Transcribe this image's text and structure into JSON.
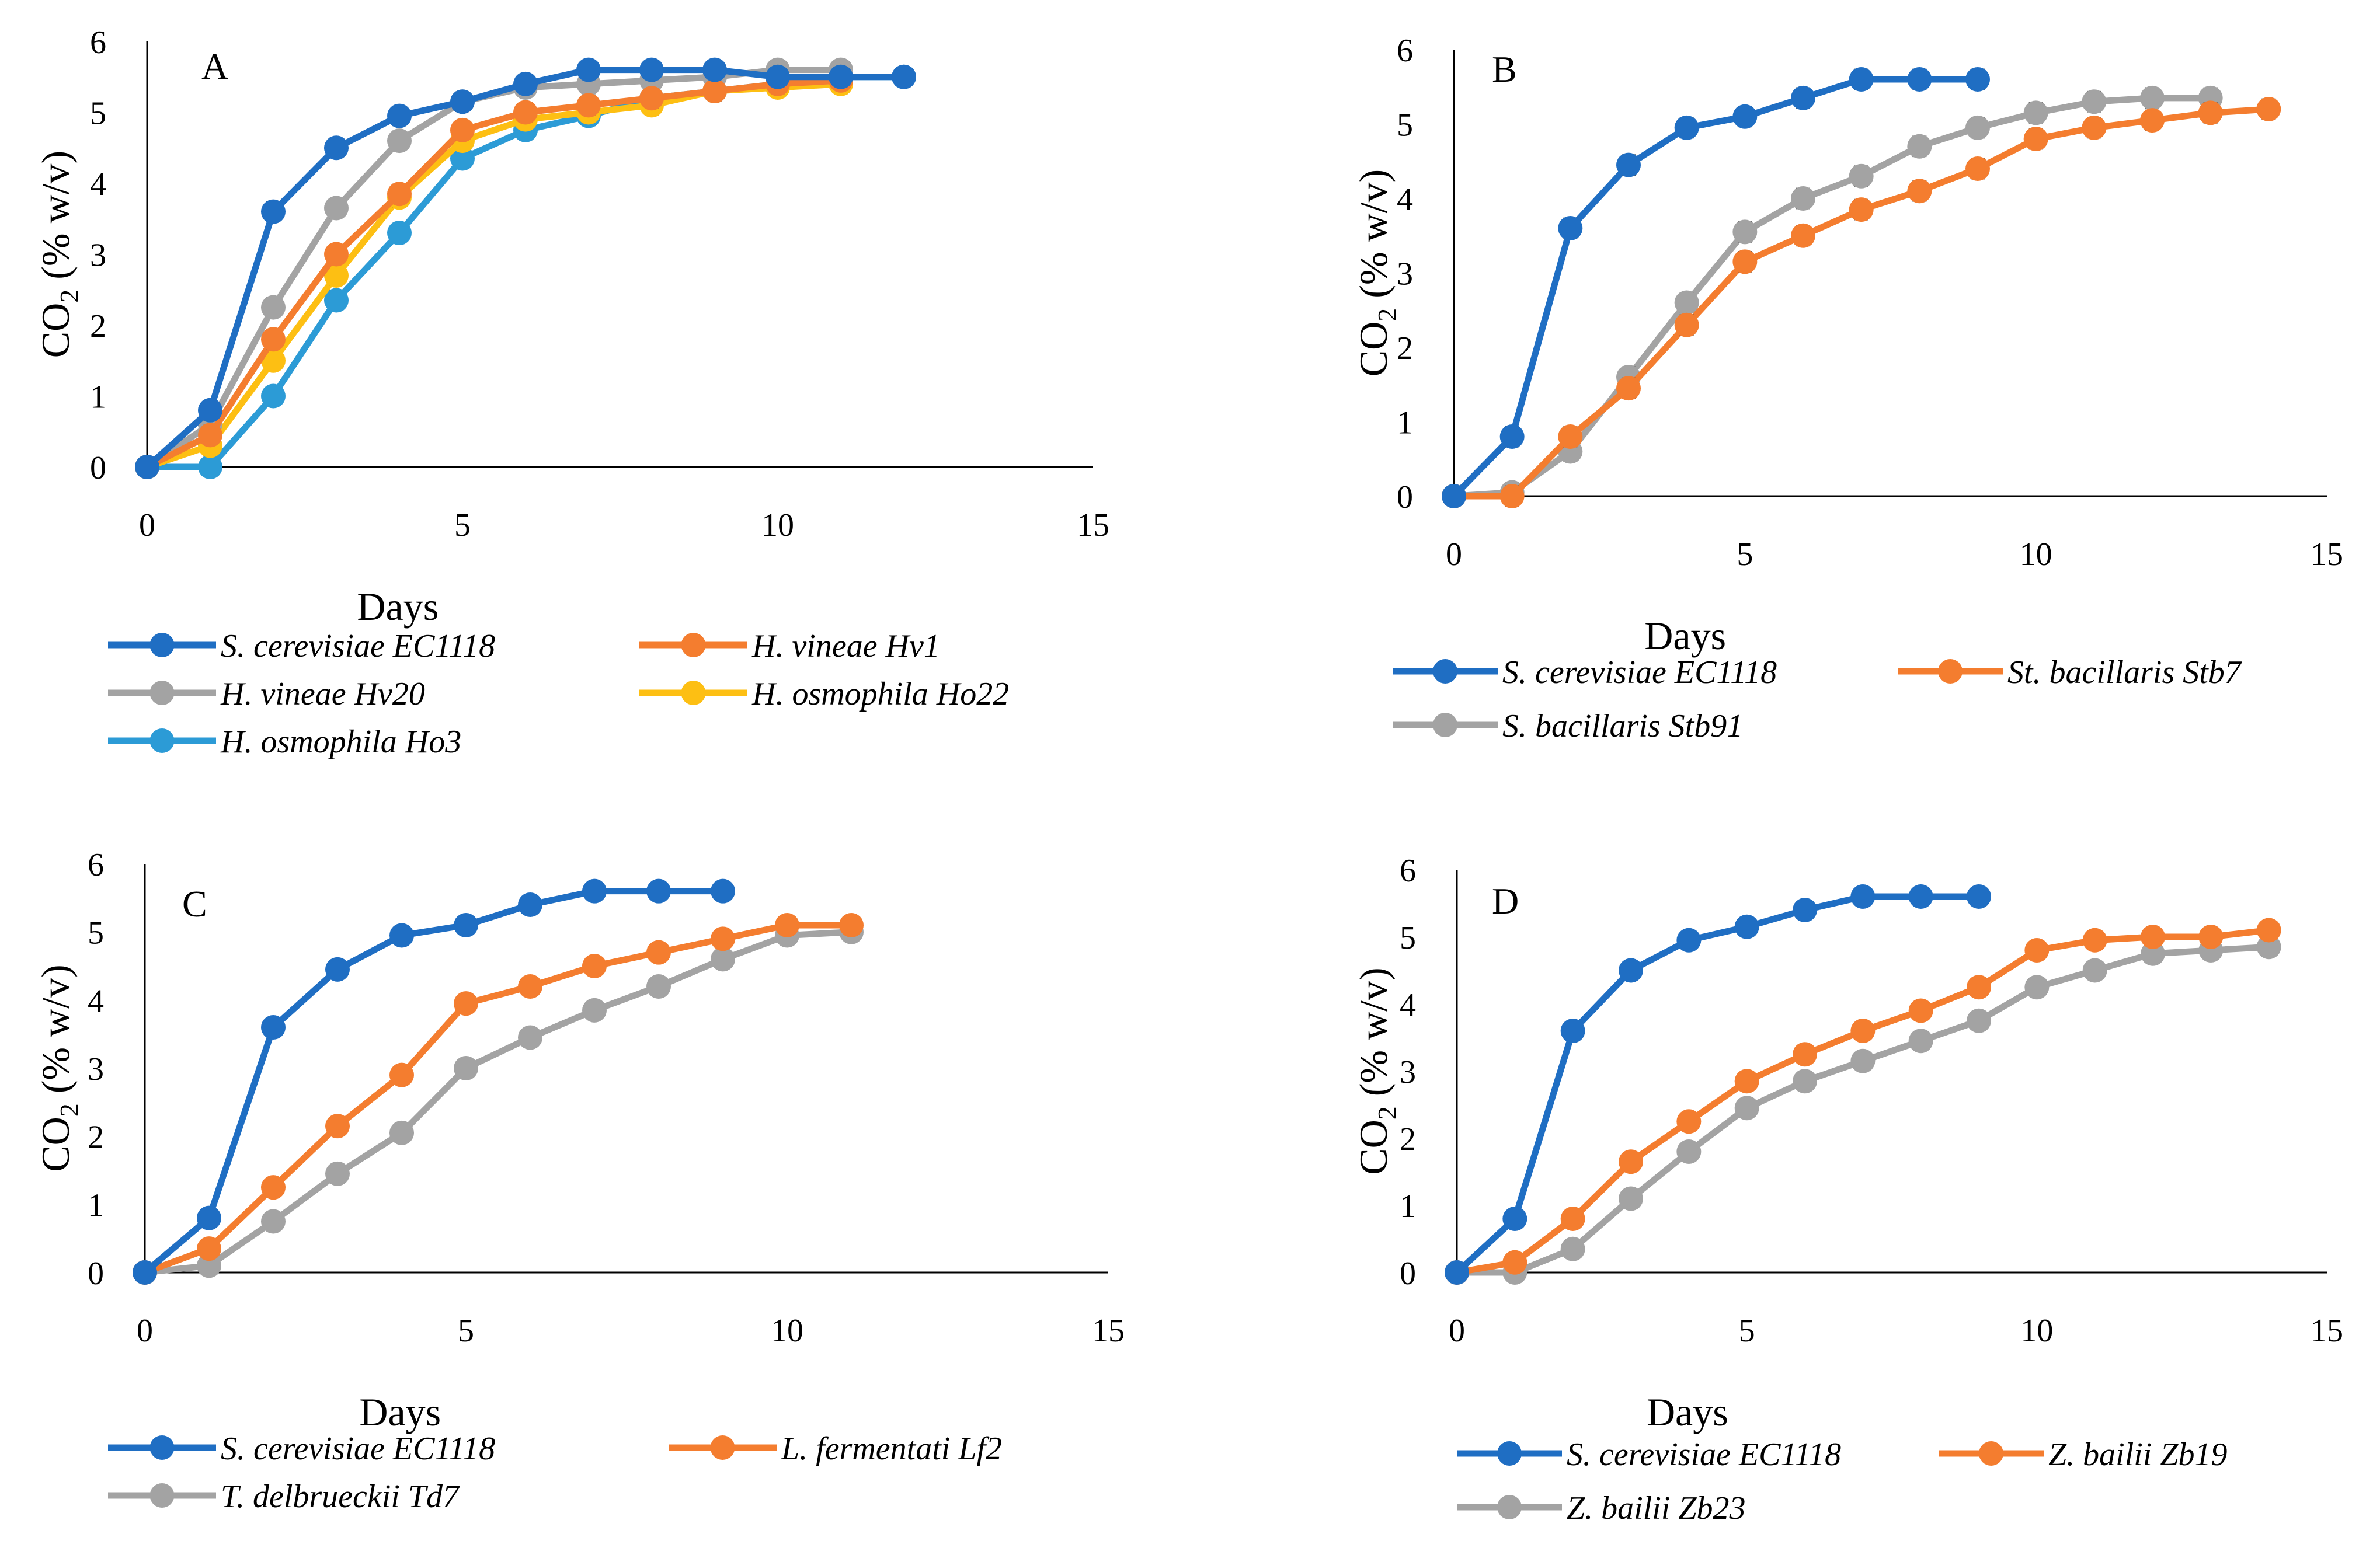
{
  "colors": {
    "blue": "#1f6ec3",
    "orange": "#f47d2f",
    "gray": "#a3a3a3",
    "yellow": "#fdbf13",
    "lightblue": "#2c9bd6"
  },
  "chart_data": [
    {
      "panel": "A",
      "type": "line",
      "xlabel": "Days",
      "ylabel": "CO2 (% w/v)",
      "xlim": [
        0,
        15
      ],
      "ylim": [
        0,
        6
      ],
      "xticks": [
        "0",
        "5",
        "10",
        "15"
      ],
      "yticks": [
        "0",
        "1",
        "2",
        "3",
        "4",
        "5",
        "6"
      ],
      "legend_rows": [
        [
          0,
          1
        ],
        [
          2,
          3
        ],
        [
          4
        ]
      ],
      "series": [
        {
          "name": "S. cerevisiae EC1118",
          "color": "blue",
          "x": [
            0,
            1,
            2,
            3,
            4,
            5,
            6,
            7,
            8,
            9,
            10,
            11,
            12
          ],
          "values": [
            0,
            0.8,
            3.6,
            4.5,
            4.95,
            5.15,
            5.4,
            5.6,
            5.6,
            5.6,
            5.5,
            5.5,
            5.5
          ]
        },
        {
          "name": "H. vineae Hv1",
          "color": "orange",
          "x": [
            0,
            1,
            2,
            3,
            4,
            5,
            6,
            7,
            8,
            9,
            10,
            11
          ],
          "values": [
            0,
            0.45,
            1.8,
            3.0,
            3.85,
            4.75,
            5.0,
            5.1,
            5.2,
            5.3,
            5.4,
            5.45
          ]
        },
        {
          "name": "H. vineae Hv20",
          "color": "gray",
          "x": [
            0,
            1,
            2,
            3,
            4,
            5,
            6,
            7,
            8,
            9,
            10,
            11
          ],
          "values": [
            0,
            0.6,
            2.25,
            3.65,
            4.6,
            5.15,
            5.35,
            5.4,
            5.45,
            5.5,
            5.6,
            5.6
          ]
        },
        {
          "name": "H. osmophila Ho22",
          "color": "yellow",
          "x": [
            0,
            1,
            2,
            3,
            4,
            5,
            6,
            7,
            8,
            9,
            10,
            11
          ],
          "values": [
            0,
            0.3,
            1.5,
            2.7,
            3.8,
            4.6,
            4.9,
            5.0,
            5.1,
            5.3,
            5.35,
            5.4
          ]
        },
        {
          "name": "H. osmophila Ho3",
          "color": "lightblue",
          "x": [
            0,
            1,
            2,
            3,
            4,
            5,
            6,
            7,
            8,
            9,
            10,
            11,
            12
          ],
          "values": [
            0,
            0,
            1.0,
            2.35,
            3.3,
            4.35,
            4.75,
            4.95,
            5.2,
            5.3,
            5.4,
            5.5,
            5.5
          ]
        }
      ]
    },
    {
      "panel": "B",
      "type": "line",
      "xlabel": "Days",
      "ylabel": "CO2 (% w/v)",
      "xlim": [
        0,
        15
      ],
      "ylim": [
        0,
        6
      ],
      "xticks": [
        "0",
        "5",
        "10",
        "15"
      ],
      "yticks": [
        "0",
        "1",
        "2",
        "3",
        "4",
        "5",
        "6"
      ],
      "legend_rows": [
        [
          0,
          1
        ],
        [
          2
        ]
      ],
      "series": [
        {
          "name": "S. cerevisiae EC1118",
          "color": "blue",
          "x": [
            0,
            1,
            2,
            3,
            4,
            5,
            6,
            7,
            8,
            9
          ],
          "values": [
            0,
            0.8,
            3.6,
            4.45,
            4.95,
            5.1,
            5.35,
            5.6,
            5.6,
            5.6
          ]
        },
        {
          "name": "St. bacillaris Stb7",
          "color": "orange",
          "x": [
            0,
            1,
            2,
            3,
            4,
            5,
            6,
            7,
            8,
            9,
            10,
            11,
            12,
            13,
            14
          ],
          "values": [
            0,
            0,
            0.8,
            1.45,
            2.3,
            3.15,
            3.5,
            3.85,
            4.1,
            4.4,
            4.8,
            4.95,
            5.05,
            5.15,
            5.2
          ]
        },
        {
          "name": "S. bacillaris Stb91",
          "color": "gray",
          "x": [
            0,
            1,
            2,
            3,
            4,
            5,
            6,
            7,
            8,
            9,
            10,
            11,
            12,
            13
          ],
          "values": [
            0,
            0.05,
            0.6,
            1.6,
            2.6,
            3.55,
            4.0,
            4.3,
            4.7,
            4.95,
            5.15,
            5.3,
            5.35,
            5.35
          ]
        }
      ]
    },
    {
      "panel": "C",
      "type": "line",
      "xlabel": "Days",
      "ylabel": "CO2 (% w/v)",
      "xlim": [
        0,
        15
      ],
      "ylim": [
        0,
        6
      ],
      "xticks": [
        "0",
        "5",
        "10",
        "15"
      ],
      "yticks": [
        "0",
        "1",
        "2",
        "3",
        "4",
        "5",
        "6"
      ],
      "legend_rows": [
        [
          0,
          1
        ],
        [
          2
        ]
      ],
      "series": [
        {
          "name": "S. cerevisiae EC1118",
          "color": "blue",
          "x": [
            0,
            1,
            2,
            3,
            4,
            5,
            6,
            7,
            8,
            9
          ],
          "values": [
            0,
            0.8,
            3.6,
            4.45,
            4.95,
            5.1,
            5.4,
            5.6,
            5.6,
            5.6
          ]
        },
        {
          "name": "L. fermentati Lf2",
          "color": "orange",
          "x": [
            0,
            1,
            2,
            3,
            4,
            5,
            6,
            7,
            8,
            9,
            10,
            11
          ],
          "values": [
            0,
            0.35,
            1.25,
            2.15,
            2.9,
            3.95,
            4.2,
            4.5,
            4.7,
            4.9,
            5.1,
            5.1
          ]
        },
        {
          "name": "T. delbrueckii Td7",
          "color": "gray",
          "x": [
            0,
            1,
            2,
            3,
            4,
            5,
            6,
            7,
            8,
            9,
            10,
            11
          ],
          "values": [
            0,
            0.1,
            0.75,
            1.45,
            2.05,
            3.0,
            3.45,
            3.85,
            4.2,
            4.6,
            4.95,
            5.0
          ]
        }
      ]
    },
    {
      "panel": "D",
      "type": "line",
      "xlabel": "Days",
      "ylabel": "CO2 (% w/v)",
      "xlim": [
        0,
        15
      ],
      "ylim": [
        0,
        6
      ],
      "xticks": [
        "0",
        "5",
        "10",
        "15"
      ],
      "yticks": [
        "0",
        "1",
        "2",
        "3",
        "4",
        "5",
        "6"
      ],
      "legend_rows": [
        [
          0,
          1
        ],
        [
          2
        ]
      ],
      "series": [
        {
          "name": "S. cerevisiae EC1118",
          "color": "blue",
          "x": [
            0,
            1,
            2,
            3,
            4,
            5,
            6,
            7,
            8,
            9
          ],
          "values": [
            0,
            0.8,
            3.6,
            4.5,
            4.95,
            5.15,
            5.4,
            5.6,
            5.6,
            5.6
          ]
        },
        {
          "name": "Z. bailii Zb19",
          "color": "orange",
          "x": [
            0,
            1,
            2,
            3,
            4,
            5,
            6,
            7,
            8,
            9,
            10,
            11,
            12,
            13,
            14
          ],
          "values": [
            0,
            0.15,
            0.8,
            1.65,
            2.25,
            2.85,
            3.25,
            3.6,
            3.9,
            4.25,
            4.8,
            4.95,
            5.0,
            5.0,
            5.1
          ]
        },
        {
          "name": "Z. bailii Zb23",
          "color": "gray",
          "x": [
            0,
            1,
            2,
            3,
            4,
            5,
            6,
            7,
            8,
            9,
            10,
            11,
            12,
            13,
            14
          ],
          "values": [
            0,
            0,
            0.35,
            1.1,
            1.8,
            2.45,
            2.85,
            3.15,
            3.45,
            3.75,
            4.25,
            4.5,
            4.75,
            4.8,
            4.85
          ]
        }
      ]
    }
  ]
}
